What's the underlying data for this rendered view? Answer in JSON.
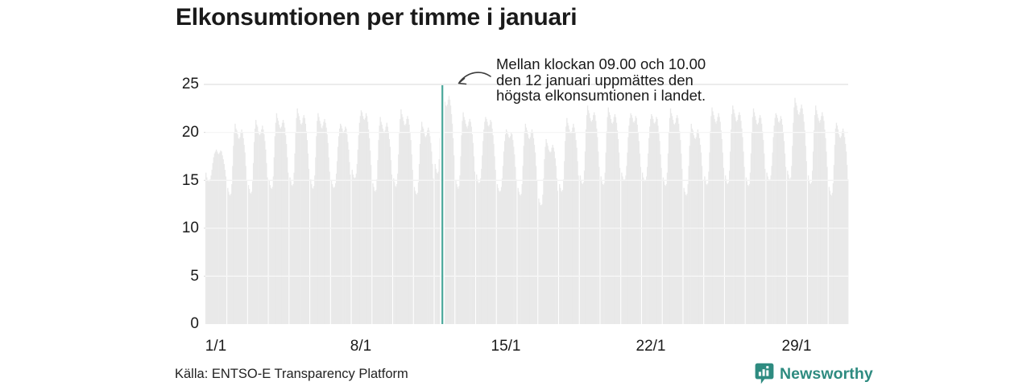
{
  "header": {
    "title": "Elkonsumtionen per timme i januari"
  },
  "annotation": {
    "lines": [
      "Mellan klockan 09.00 och 10.00",
      "den 12 januari uppmättes den",
      "högsta elkonsumtionen i landet."
    ]
  },
  "source": {
    "label": "Källa: ENTSO-E Transparency Platform"
  },
  "footer": {
    "brand": "Newsworthy",
    "brand_color": "#2e8b80",
    "logo_icon": "speech-bubble-bar-chart"
  },
  "chart_data": {
    "type": "bar",
    "title": "Elkonsumtionen per timme i januari",
    "xlabel": "",
    "ylabel": "",
    "ylim": [
      0,
      25
    ],
    "y_ticks": [
      0,
      5,
      10,
      15,
      20,
      25
    ],
    "x_tick_labels": [
      "1/1",
      "8/1",
      "15/1",
      "22/1",
      "29/1"
    ],
    "grid": "horizontal",
    "legend": "none",
    "bar_color": "#e9e9e9",
    "gridline_color": "#d9d9d9",
    "highlight": {
      "date": "12/1",
      "day_index": 11,
      "hour_start": 9,
      "hour_end": 10,
      "peak_value": 24.5,
      "color": "#4aa79b",
      "note": "Mellan klockan 09.00 och 10.00 den 12 januari uppmättes den högsta elkonsumtionen i landet."
    },
    "days": [
      {
        "date": "1/1",
        "hours": [
          15.8,
          15.3,
          15.0,
          14.9,
          14.9,
          15.1,
          15.5,
          16.1,
          16.8,
          17.4,
          17.8,
          18.0,
          18.2,
          18.0,
          17.8,
          17.7,
          17.9,
          18.1,
          18.0,
          17.6,
          17.2,
          16.7,
          16.1,
          15.4
        ]
      },
      {
        "date": "2/1",
        "hours": [
          14.2,
          13.8,
          13.5,
          13.4,
          13.6,
          14.6,
          16.5,
          18.6,
          20.0,
          20.9,
          20.4,
          20.2,
          19.8,
          19.4,
          19.3,
          19.5,
          20.0,
          20.3,
          20.0,
          19.4,
          18.7,
          17.9,
          16.5,
          15.0
        ]
      },
      {
        "date": "3/1",
        "hours": [
          14.5,
          14.1,
          13.7,
          13.6,
          13.8,
          14.9,
          16.8,
          19.0,
          20.4,
          21.3,
          20.8,
          20.6,
          20.1,
          19.8,
          19.7,
          19.9,
          20.3,
          20.7,
          20.3,
          19.8,
          19.1,
          18.2,
          16.8,
          15.3
        ]
      },
      {
        "date": "4/1",
        "hours": [
          15.0,
          14.5,
          14.2,
          14.1,
          14.3,
          15.4,
          17.4,
          19.6,
          21.0,
          22.0,
          21.5,
          21.2,
          20.8,
          20.5,
          20.4,
          20.6,
          21.0,
          21.3,
          21.0,
          20.5,
          19.7,
          18.8,
          17.4,
          15.8
        ]
      },
      {
        "date": "5/1",
        "hours": [
          15.3,
          14.9,
          14.5,
          14.4,
          14.6,
          15.8,
          17.8,
          20.0,
          21.5,
          22.5,
          22.0,
          21.7,
          21.3,
          20.9,
          20.8,
          21.0,
          21.5,
          21.8,
          21.5,
          20.9,
          20.1,
          19.2,
          17.8,
          16.2
        ]
      },
      {
        "date": "6/1",
        "hours": [
          15.1,
          14.6,
          14.2,
          14.1,
          14.4,
          15.5,
          17.4,
          19.6,
          21.2,
          22.0,
          21.6,
          21.2,
          20.9,
          20.5,
          20.4,
          20.7,
          21.1,
          21.4,
          21.0,
          20.5,
          19.8,
          18.9,
          17.4,
          15.9
        ]
      },
      {
        "date": "7/1",
        "hours": [
          15.0,
          14.6,
          14.3,
          14.2,
          14.3,
          14.7,
          15.7,
          17.0,
          18.5,
          19.6,
          20.4,
          20.9,
          20.7,
          20.4,
          20.1,
          20.0,
          20.2,
          20.6,
          20.4,
          19.8,
          19.0,
          18.2,
          16.9,
          15.6
        ]
      },
      {
        "date": "8/1",
        "hours": [
          16.1,
          15.6,
          15.3,
          15.2,
          15.3,
          15.7,
          16.7,
          18.2,
          19.7,
          21.0,
          21.7,
          22.3,
          22.1,
          21.7,
          21.4,
          21.3,
          21.5,
          22.0,
          21.7,
          21.1,
          20.3,
          19.4,
          18.1,
          16.6
        ]
      },
      {
        "date": "9/1",
        "hours": [
          14.7,
          14.3,
          13.9,
          13.8,
          14.0,
          15.1,
          17.1,
          19.2,
          20.7,
          21.6,
          21.1,
          20.8,
          20.4,
          20.1,
          20.0,
          20.2,
          20.6,
          21.0,
          20.6,
          20.1,
          19.3,
          18.5,
          17.1,
          15.6
        ]
      },
      {
        "date": "10/1",
        "hours": [
          15.2,
          14.8,
          14.4,
          14.3,
          14.6,
          15.7,
          17.7,
          19.9,
          21.4,
          22.4,
          21.9,
          21.6,
          21.2,
          20.8,
          20.7,
          20.9,
          21.4,
          21.7,
          21.4,
          20.8,
          20.0,
          19.2,
          17.7,
          16.1
        ]
      },
      {
        "date": "11/1",
        "hours": [
          14.3,
          13.9,
          13.6,
          13.5,
          13.7,
          14.8,
          16.7,
          18.8,
          20.2,
          21.1,
          20.6,
          20.4,
          19.9,
          19.6,
          19.5,
          19.7,
          20.2,
          20.5,
          20.2,
          19.6,
          18.9,
          18.0,
          16.7,
          15.2
        ]
      },
      {
        "date": "12/1",
        "hours": [
          16.7,
          16.2,
          15.8,
          15.7,
          15.9,
          17.2,
          19.4,
          21.8,
          23.4,
          24.5,
          23.9,
          23.6,
          23.2,
          22.8,
          22.7,
          22.9,
          23.4,
          23.8,
          23.4,
          22.8,
          21.9,
          20.9,
          19.4,
          17.6
        ]
      },
      {
        "date": "13/1",
        "hours": [
          15.0,
          14.6,
          14.3,
          14.1,
          14.4,
          15.5,
          17.5,
          19.7,
          21.2,
          22.1,
          21.6,
          21.3,
          20.9,
          20.6,
          20.4,
          20.7,
          21.1,
          21.4,
          21.1,
          20.6,
          19.8,
          18.9,
          17.5,
          15.9
        ]
      },
      {
        "date": "14/1",
        "hours": [
          15.6,
          15.1,
          14.8,
          14.7,
          14.8,
          15.2,
          16.2,
          17.6,
          19.1,
          20.3,
          21.1,
          21.6,
          21.4,
          21.1,
          20.7,
          20.6,
          20.8,
          21.3,
          21.1,
          20.4,
          19.7,
          18.8,
          17.5,
          16.1
        ]
      },
      {
        "date": "15/1",
        "hours": [
          14.6,
          14.2,
          13.9,
          13.8,
          13.9,
          14.3,
          15.2,
          16.5,
          18.0,
          19.1,
          19.8,
          20.3,
          20.1,
          19.8,
          19.5,
          19.4,
          19.6,
          20.0,
          19.8,
          19.2,
          18.5,
          17.7,
          16.4,
          15.1
        ]
      },
      {
        "date": "16/1",
        "hours": [
          14.2,
          13.8,
          13.5,
          13.4,
          13.6,
          14.6,
          16.5,
          18.6,
          20.1,
          20.9,
          20.5,
          20.2,
          19.8,
          19.4,
          19.3,
          19.5,
          20.0,
          20.3,
          20.0,
          19.4,
          18.7,
          17.9,
          16.5,
          15.0
        ]
      },
      {
        "date": "17/1",
        "hours": [
          13.1,
          12.7,
          12.4,
          12.4,
          12.5,
          13.5,
          15.2,
          17.2,
          18.5,
          19.3,
          18.9,
          18.6,
          18.2,
          18.0,
          17.9,
          18.0,
          18.4,
          18.7,
          18.4,
          18.0,
          17.3,
          16.5,
          15.2,
          13.9
        ]
      },
      {
        "date": "18/1",
        "hours": [
          14.6,
          14.2,
          13.9,
          13.8,
          14.0,
          15.1,
          17.0,
          19.1,
          20.6,
          21.5,
          21.0,
          20.7,
          20.3,
          20.0,
          19.9,
          20.1,
          20.5,
          20.9,
          20.5,
          20.0,
          19.2,
          18.4,
          17.0,
          15.5
        ]
      },
      {
        "date": "19/1",
        "hours": [
          15.5,
          15.0,
          14.7,
          14.6,
          14.8,
          16.0,
          18.0,
          20.3,
          21.8,
          22.8,
          22.3,
          22.0,
          21.5,
          21.2,
          21.1,
          21.3,
          21.8,
          22.1,
          21.8,
          21.2,
          20.4,
          19.5,
          18.0,
          16.4
        ]
      },
      {
        "date": "20/1",
        "hours": [
          15.4,
          14.9,
          14.6,
          14.5,
          14.7,
          15.8,
          17.9,
          20.1,
          21.6,
          22.6,
          22.1,
          21.8,
          21.4,
          21.0,
          20.9,
          21.1,
          21.6,
          21.9,
          21.6,
          21.0,
          20.2,
          19.3,
          17.9,
          16.3
        ]
      },
      {
        "date": "21/1",
        "hours": [
          15.8,
          15.4,
          15.1,
          15.0,
          15.1,
          15.5,
          16.5,
          17.9,
          19.5,
          20.7,
          21.5,
          22.0,
          21.8,
          21.5,
          21.1,
          21.0,
          21.2,
          21.7,
          21.5,
          20.8,
          20.0,
          19.1,
          17.8,
          16.4
        ]
      },
      {
        "date": "22/1",
        "hours": [
          15.8,
          15.3,
          15.0,
          14.9,
          15.0,
          15.4,
          16.4,
          17.8,
          19.4,
          20.6,
          21.4,
          21.9,
          21.7,
          21.4,
          21.0,
          20.9,
          21.1,
          21.6,
          21.4,
          20.7,
          19.9,
          19.1,
          17.7,
          16.3
        ]
      },
      {
        "date": "23/1",
        "hours": [
          15.3,
          14.9,
          14.5,
          14.4,
          14.6,
          15.8,
          17.8,
          20.0,
          21.5,
          22.5,
          22.0,
          21.7,
          21.3,
          20.9,
          20.8,
          21.0,
          21.5,
          21.8,
          21.5,
          20.9,
          20.1,
          19.2,
          17.8,
          16.2
        ]
      },
      {
        "date": "24/1",
        "hours": [
          14.2,
          13.8,
          13.5,
          13.4,
          13.6,
          14.6,
          16.5,
          18.6,
          20.0,
          20.9,
          20.4,
          20.2,
          19.7,
          19.4,
          19.3,
          19.5,
          20.0,
          20.3,
          19.9,
          19.4,
          18.7,
          17.9,
          16.5,
          15.0
        ]
      },
      {
        "date": "25/1",
        "hours": [
          15.4,
          15.0,
          14.6,
          14.5,
          14.7,
          15.9,
          17.9,
          20.1,
          21.7,
          22.6,
          22.2,
          21.8,
          21.4,
          21.1,
          20.9,
          21.2,
          21.6,
          22.0,
          21.6,
          21.1,
          20.2,
          19.3,
          17.9,
          16.3
        ]
      },
      {
        "date": "26/1",
        "hours": [
          15.5,
          15.1,
          14.7,
          14.6,
          14.8,
          16.0,
          18.0,
          20.3,
          21.9,
          22.8,
          22.4,
          22.0,
          21.6,
          21.2,
          21.1,
          21.3,
          21.8,
          22.1,
          21.8,
          21.2,
          20.4,
          19.5,
          18.0,
          16.4
        ]
      },
      {
        "date": "27/1",
        "hours": [
          15.3,
          14.9,
          14.5,
          14.4,
          14.6,
          15.8,
          17.8,
          20.0,
          21.6,
          22.5,
          22.1,
          21.7,
          21.3,
          20.9,
          20.8,
          21.0,
          21.5,
          21.8,
          21.5,
          20.9,
          20.1,
          19.2,
          17.8,
          16.2
        ]
      },
      {
        "date": "28/1",
        "hours": [
          15.8,
          15.4,
          15.1,
          15.0,
          15.1,
          15.5,
          16.5,
          17.9,
          19.5,
          20.7,
          21.5,
          22.0,
          21.8,
          21.5,
          21.1,
          21.0,
          21.2,
          21.7,
          21.4,
          20.8,
          20.0,
          19.1,
          17.8,
          16.4
        ]
      },
      {
        "date": "29/1",
        "hours": [
          16.0,
          15.6,
          15.2,
          15.1,
          15.3,
          16.5,
          18.6,
          21.0,
          22.6,
          23.6,
          23.1,
          22.8,
          22.3,
          21.9,
          21.8,
          22.1,
          22.5,
          22.9,
          22.5,
          21.9,
          21.1,
          20.2,
          18.6,
          17.0
        ]
      },
      {
        "date": "30/1",
        "hours": [
          15.5,
          15.0,
          14.7,
          14.6,
          14.8,
          16.0,
          18.0,
          20.2,
          21.8,
          22.8,
          22.3,
          21.9,
          21.5,
          21.2,
          21.0,
          21.3,
          21.7,
          22.1,
          21.7,
          21.2,
          20.3,
          19.4,
          18.0,
          16.4
        ]
      },
      {
        "date": "31/1",
        "hours": [
          14.3,
          13.9,
          13.5,
          13.4,
          13.7,
          14.7,
          16.6,
          18.7,
          20.4,
          21.0,
          20.7,
          20.3,
          19.8,
          19.5,
          19.4,
          19.6,
          20.1,
          20.4,
          20.1,
          19.5,
          18.8,
          18.0,
          16.6,
          15.1
        ]
      }
    ]
  }
}
